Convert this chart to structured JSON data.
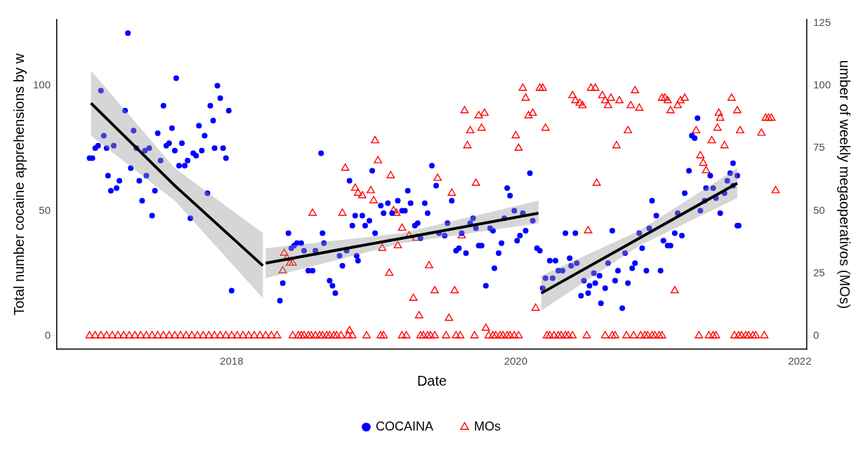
{
  "chart_data": {
    "type": "scatter",
    "xlabel": "Date",
    "ylabel": "Total number cocaine apprehensions by w",
    "y2label": "umber of weekly megaoperativos (MOs)",
    "xlim": [
      2016.77,
      2022.05
    ],
    "xticks": [
      2018,
      2020,
      2022
    ],
    "ylim": [
      -5.4,
      126.4
    ],
    "yticks": [
      0,
      50,
      100
    ],
    "y2lim": [
      -5.4,
      126.4
    ],
    "y2ticks": [
      0,
      25,
      50,
      75,
      100,
      125
    ],
    "grid": false,
    "legend": "bottom",
    "series": [
      {
        "name": "COCAINA",
        "type": "scatter",
        "marker": "circle",
        "color": "#0000ff",
        "x": [
          2017.0,
          2017.02,
          2017.04,
          2017.06,
          2017.08,
          2017.1,
          2017.12,
          2017.13,
          2017.15,
          2017.17,
          2017.19,
          2017.21,
          2017.25,
          2017.27,
          2017.29,
          2017.31,
          2017.33,
          2017.35,
          2017.37,
          2017.39,
          2017.4,
          2017.42,
          2017.44,
          2017.46,
          2017.48,
          2017.5,
          2017.52,
          2017.54,
          2017.56,
          2017.58,
          2017.6,
          2017.61,
          2017.63,
          2017.65,
          2017.67,
          2017.69,
          2017.71,
          2017.73,
          2017.75,
          2017.77,
          2017.79,
          2017.81,
          2017.83,
          2017.85,
          2017.87,
          2017.88,
          2017.9,
          2017.92,
          2017.94,
          2017.96,
          2017.98,
          2018.0,
          2018.34,
          2018.36,
          2018.4,
          2018.42,
          2018.44,
          2018.46,
          2018.49,
          2018.51,
          2018.54,
          2018.57,
          2018.59,
          2018.63,
          2018.64,
          2018.65,
          2018.69,
          2018.71,
          2018.73,
          2018.76,
          2018.78,
          2018.81,
          2018.83,
          2018.85,
          2018.87,
          2018.88,
          2018.89,
          2018.92,
          2018.94,
          2018.97,
          2018.99,
          2019.01,
          2019.05,
          2019.07,
          2019.1,
          2019.13,
          2019.17,
          2019.2,
          2019.22,
          2019.24,
          2019.26,
          2019.29,
          2019.31,
          2019.33,
          2019.36,
          2019.38,
          2019.41,
          2019.44,
          2019.46,
          2019.5,
          2019.52,
          2019.55,
          2019.58,
          2019.6,
          2019.62,
          2019.65,
          2019.68,
          2019.7,
          2019.72,
          2019.74,
          2019.76,
          2019.79,
          2019.82,
          2019.84,
          2019.85,
          2019.88,
          2019.9,
          2019.92,
          2019.94,
          2019.96,
          2019.99,
          2020.01,
          2020.03,
          2020.05,
          2020.07,
          2020.1,
          2020.12,
          2020.15,
          2020.17,
          2020.19,
          2020.21,
          2020.24,
          2020.26,
          2020.28,
          2020.3,
          2020.33,
          2020.35,
          2020.38,
          2020.39,
          2020.42,
          2020.43,
          2020.46,
          2020.48,
          2020.51,
          2020.52,
          2020.55,
          2020.56,
          2020.59,
          2020.6,
          2020.63,
          2020.65,
          2020.68,
          2020.7,
          2020.72,
          2020.75,
          2020.77,
          2020.79,
          2020.82,
          2020.84,
          2020.87,
          2020.89,
          2020.92,
          2020.94,
          2020.96,
          2020.99,
          2021.02,
          2021.04,
          2021.07,
          2021.09,
          2021.12,
          2021.14,
          2021.17,
          2021.19,
          2021.22,
          2021.24,
          2021.26,
          2021.28,
          2021.3,
          2021.33,
          2021.34,
          2021.37,
          2021.39,
          2021.41,
          2021.44,
          2021.47,
          2021.49,
          2021.51,
          2021.53,
          2021.53,
          2021.56,
          2021.56,
          2021.57
        ],
        "values": [
          71,
          71,
          75,
          76,
          98,
          80,
          75,
          64,
          58,
          76,
          59,
          62,
          90,
          121,
          67,
          82,
          75,
          62,
          54,
          74,
          64,
          75,
          48,
          58,
          81,
          70,
          92,
          76,
          77,
          83,
          74,
          103,
          68,
          77,
          68,
          70,
          47,
          73,
          72,
          84,
          74,
          80,
          57,
          92,
          86,
          75,
          100,
          95,
          75,
          71,
          90,
          18,
          14,
          21,
          41,
          35,
          36,
          37,
          37,
          34,
          26,
          26,
          34,
          73,
          41,
          37,
          22,
          20,
          17,
          32,
          28,
          34,
          62,
          44,
          48,
          32,
          30,
          48,
          44,
          46,
          66,
          41,
          52,
          49,
          53,
          49,
          54,
          50,
          50,
          58,
          53,
          44,
          45,
          39,
          53,
          49,
          68,
          60,
          41,
          40,
          45,
          54,
          34,
          35,
          41,
          33,
          45,
          47,
          43,
          36,
          36,
          20,
          43,
          42,
          27,
          33,
          37,
          47,
          59,
          56,
          50,
          38,
          40,
          49,
          42,
          65,
          46,
          35,
          34,
          19,
          23,
          30,
          23,
          30,
          26,
          26,
          41,
          31,
          28,
          41,
          29,
          16,
          22,
          17,
          20,
          25,
          21,
          24,
          13,
          19,
          29,
          42,
          22,
          26,
          11,
          33,
          21,
          27,
          29,
          41,
          35,
          26,
          43,
          54,
          48,
          26,
          38,
          36,
          36,
          41,
          49,
          40,
          57,
          66,
          80,
          79,
          87,
          50,
          54,
          59,
          64,
          59,
          55,
          49,
          57,
          62,
          65,
          60,
          69,
          64,
          44,
          44
        ]
      },
      {
        "name": "MOs",
        "type": "scatter",
        "axis": "y2",
        "marker": "triangle",
        "color": "#ff0000",
        "x": [
          2017.0,
          2017.04,
          2017.08,
          2017.12,
          2017.16,
          2017.2,
          2017.24,
          2017.28,
          2017.32,
          2017.36,
          2017.4,
          2017.44,
          2017.48,
          2017.52,
          2017.56,
          2017.6,
          2017.64,
          2017.68,
          2017.72,
          2017.76,
          2017.8,
          2017.84,
          2017.88,
          2017.92,
          2017.96,
          2018.0,
          2018.04,
          2018.08,
          2018.12,
          2018.16,
          2018.2,
          2018.24,
          2018.28,
          2018.32,
          2018.43,
          2018.47,
          2018.49,
          2018.51,
          2018.54,
          2018.56,
          2018.59,
          2018.62,
          2018.64,
          2018.67,
          2018.69,
          2018.72,
          2018.74,
          2018.77,
          2018.82,
          2018.85,
          2018.95,
          2019.05,
          2019.07,
          2019.2,
          2019.23,
          2019.33,
          2019.35,
          2019.38,
          2019.4,
          2019.43,
          2019.51,
          2019.58,
          2019.61,
          2019.71,
          2019.81,
          2019.84,
          2019.86,
          2019.89,
          2019.91,
          2019.94,
          2019.96,
          2019.99,
          2020.02,
          2020.22,
          2020.24,
          2020.27,
          2020.3,
          2020.32,
          2020.35,
          2020.37,
          2020.4,
          2020.5,
          2020.63,
          2020.68,
          2020.7,
          2020.78,
          2020.83,
          2020.88,
          2020.91,
          2020.93,
          2020.96,
          2020.98,
          2021.01,
          2021.03,
          2021.29,
          2021.36,
          2021.39,
          2021.41,
          2021.54,
          2021.57,
          2021.59,
          2021.62,
          2021.64,
          2021.67,
          2021.69,
          2021.75,
          2018.36,
          2018.37,
          2018.39,
          2018.41,
          2018.43,
          2018.57,
          2018.78,
          2018.8,
          2018.83,
          2018.87,
          2018.89,
          2018.92,
          2018.98,
          2019.0,
          2019.01,
          2019.03,
          2019.06,
          2019.11,
          2019.12,
          2019.14,
          2019.16,
          2019.17,
          2019.2,
          2019.25,
          2019.28,
          2019.3,
          2019.32,
          2019.39,
          2019.43,
          2019.45,
          2019.53,
          2019.55,
          2019.57,
          2019.62,
          2019.64,
          2019.66,
          2019.68,
          2019.72,
          2019.74,
          2019.76,
          2019.78,
          2019.79,
          2020.0,
          2020.02,
          2020.05,
          2020.07,
          2020.09,
          2020.12,
          2020.14,
          2020.17,
          2020.19,
          2020.21,
          2020.4,
          2020.42,
          2020.45,
          2020.47,
          2020.51,
          2020.53,
          2020.56,
          2020.57,
          2020.61,
          2020.63,
          2020.65,
          2020.67,
          2020.71,
          2020.73,
          2020.79,
          2020.81,
          2020.84,
          2020.87,
          2021.03,
          2021.05,
          2021.07,
          2021.09,
          2021.12,
          2021.14,
          2021.16,
          2021.19,
          2021.27,
          2021.3,
          2021.32,
          2021.34,
          2021.38,
          2021.42,
          2021.43,
          2021.44,
          2021.47,
          2021.52,
          2021.56,
          2021.58,
          2021.73,
          2021.76,
          2021.78,
          2021.8,
          2021.83
        ],
        "values": [
          0,
          0,
          0,
          0,
          0,
          0,
          0,
          0,
          0,
          0,
          0,
          0,
          0,
          0,
          0,
          0,
          0,
          0,
          0,
          0,
          0,
          0,
          0,
          0,
          0,
          0,
          0,
          0,
          0,
          0,
          0,
          0,
          0,
          0,
          0,
          0,
          0,
          0,
          0,
          0,
          0,
          0,
          0,
          0,
          0,
          0,
          0,
          0,
          0,
          0,
          0,
          0,
          0,
          0,
          0,
          0,
          0,
          0,
          0,
          0,
          0,
          0,
          0,
          0,
          0,
          0,
          0,
          0,
          0,
          0,
          0,
          0,
          0,
          0,
          0,
          0,
          0,
          0,
          0,
          0,
          0,
          0,
          0,
          0,
          0,
          0,
          0,
          0,
          0,
          0,
          0,
          0,
          0,
          0,
          0,
          0,
          0,
          0,
          0,
          0,
          0,
          0,
          0,
          0,
          0,
          0,
          26,
          33,
          31,
          29,
          29,
          49,
          49,
          67,
          2,
          59,
          57,
          56,
          58,
          54,
          78,
          70,
          35,
          25,
          64,
          50,
          49,
          36,
          43,
          40,
          15,
          39,
          8,
          28,
          18,
          63,
          7,
          57,
          18,
          40,
          90,
          76,
          82,
          61,
          88,
          83,
          89,
          3,
          80,
          75,
          99,
          95,
          88,
          89,
          11,
          99,
          99,
          83,
          96,
          94,
          93,
          92,
          42,
          99,
          99,
          61,
          96,
          94,
          92,
          95,
          76,
          94,
          82,
          92,
          98,
          91,
          95,
          95,
          94,
          90,
          18,
          92,
          94,
          95,
          82,
          72,
          69,
          66,
          78,
          83,
          89,
          87,
          76,
          95,
          90,
          82,
          81,
          87,
          87,
          87,
          58
        ]
      },
      {
        "type": "line",
        "marker": "none",
        "line_style": "solid",
        "color": "#000000",
        "x": [
          2017.01,
          2017.6,
          2018.22
        ],
        "values": [
          93,
          60,
          28
        ],
        "lower": [
          80,
          54,
          15
        ],
        "upper": [
          106,
          67,
          41
        ]
      },
      {
        "type": "line",
        "marker": "none",
        "line_style": "solid",
        "color": "#000000",
        "x": [
          2018.24,
          2019.2,
          2020.16
        ],
        "values": [
          29,
          39,
          49
        ],
        "lower": [
          23,
          37,
          45
        ],
        "upper": [
          35,
          41,
          54
        ]
      },
      {
        "type": "line",
        "marker": "none",
        "line_style": "solid",
        "color": "#000000",
        "x": [
          2020.18,
          2020.87,
          2021.56
        ],
        "values": [
          17,
          39,
          61
        ],
        "lower": [
          10,
          36,
          55
        ],
        "upper": [
          24,
          42,
          67
        ]
      }
    ]
  }
}
